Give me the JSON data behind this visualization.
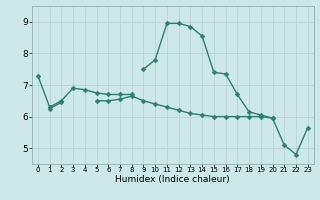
{
  "x": [
    0,
    1,
    2,
    3,
    4,
    5,
    6,
    7,
    8,
    9,
    10,
    11,
    12,
    13,
    14,
    15,
    16,
    17,
    18,
    19,
    20,
    21,
    22,
    23
  ],
  "line1": [
    7.3,
    6.3,
    6.5,
    6.9,
    6.85,
    6.75,
    6.7,
    6.7,
    6.7,
    null,
    null,
    null,
    null,
    null,
    null,
    null,
    null,
    null,
    null,
    null,
    null,
    null,
    null,
    null
  ],
  "line2": [
    null,
    null,
    null,
    null,
    null,
    null,
    null,
    null,
    null,
    7.5,
    7.8,
    8.95,
    8.95,
    8.85,
    8.55,
    7.4,
    7.35,
    6.7,
    6.15,
    6.05,
    5.95,
    5.1,
    4.8,
    5.65
  ],
  "line3": [
    null,
    6.25,
    6.45,
    null,
    null,
    6.5,
    6.5,
    6.55,
    6.65,
    6.5,
    6.4,
    6.3,
    6.2,
    6.1,
    6.05,
    6.0,
    6.0,
    6.0,
    6.0,
    6.0,
    5.95,
    null,
    null,
    null
  ],
  "color": "#2d7f6f",
  "bg_color": "#cde8e8",
  "grid_color": "#b8d4d4",
  "xlabel": "Humidex (Indice chaleur)",
  "ylim": [
    4.5,
    9.5
  ],
  "xlim": [
    -0.5,
    23.5
  ],
  "yticks": [
    5,
    6,
    7,
    8,
    9
  ],
  "xticks": [
    0,
    1,
    2,
    3,
    4,
    5,
    6,
    7,
    8,
    9,
    10,
    11,
    12,
    13,
    14,
    15,
    16,
    17,
    18,
    19,
    20,
    21,
    22,
    23
  ],
  "markersize": 2.5,
  "linewidth": 1.0
}
